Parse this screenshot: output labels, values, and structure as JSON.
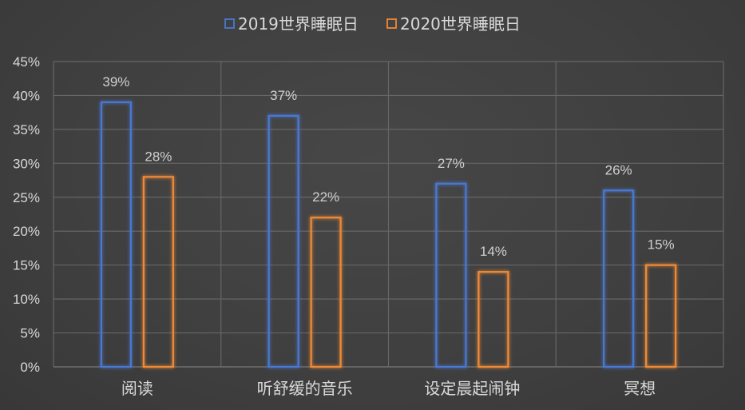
{
  "chart_data": {
    "type": "bar",
    "title": "",
    "xlabel": "",
    "ylabel": "",
    "categories": [
      "阅读",
      "听舒缓的音乐",
      "设定晨起闹钟",
      "冥想"
    ],
    "series": [
      {
        "name": "2019世界睡眠日",
        "values": [
          39,
          37,
          27,
          26
        ],
        "color": "#4a78d2"
      },
      {
        "name": "2020世界睡眠日",
        "values": [
          28,
          22,
          14,
          15
        ],
        "color": "#f08a36"
      }
    ],
    "ylim": [
      0,
      45
    ],
    "yticks": [
      0,
      5,
      10,
      15,
      20,
      25,
      30,
      35,
      40,
      45
    ],
    "ytick_labels": [
      "0%",
      "5%",
      "10%",
      "15%",
      "20%",
      "25%",
      "30%",
      "35%",
      "40%",
      "45%"
    ],
    "data_labels": [
      [
        "39%",
        "37%",
        "27%",
        "26%"
      ],
      [
        "28%",
        "22%",
        "14%",
        "15%"
      ]
    ],
    "value_suffix": "%",
    "grid": true,
    "legend_position": "top-center",
    "bar_style": "outlined-glow",
    "background_color": "#404040"
  }
}
